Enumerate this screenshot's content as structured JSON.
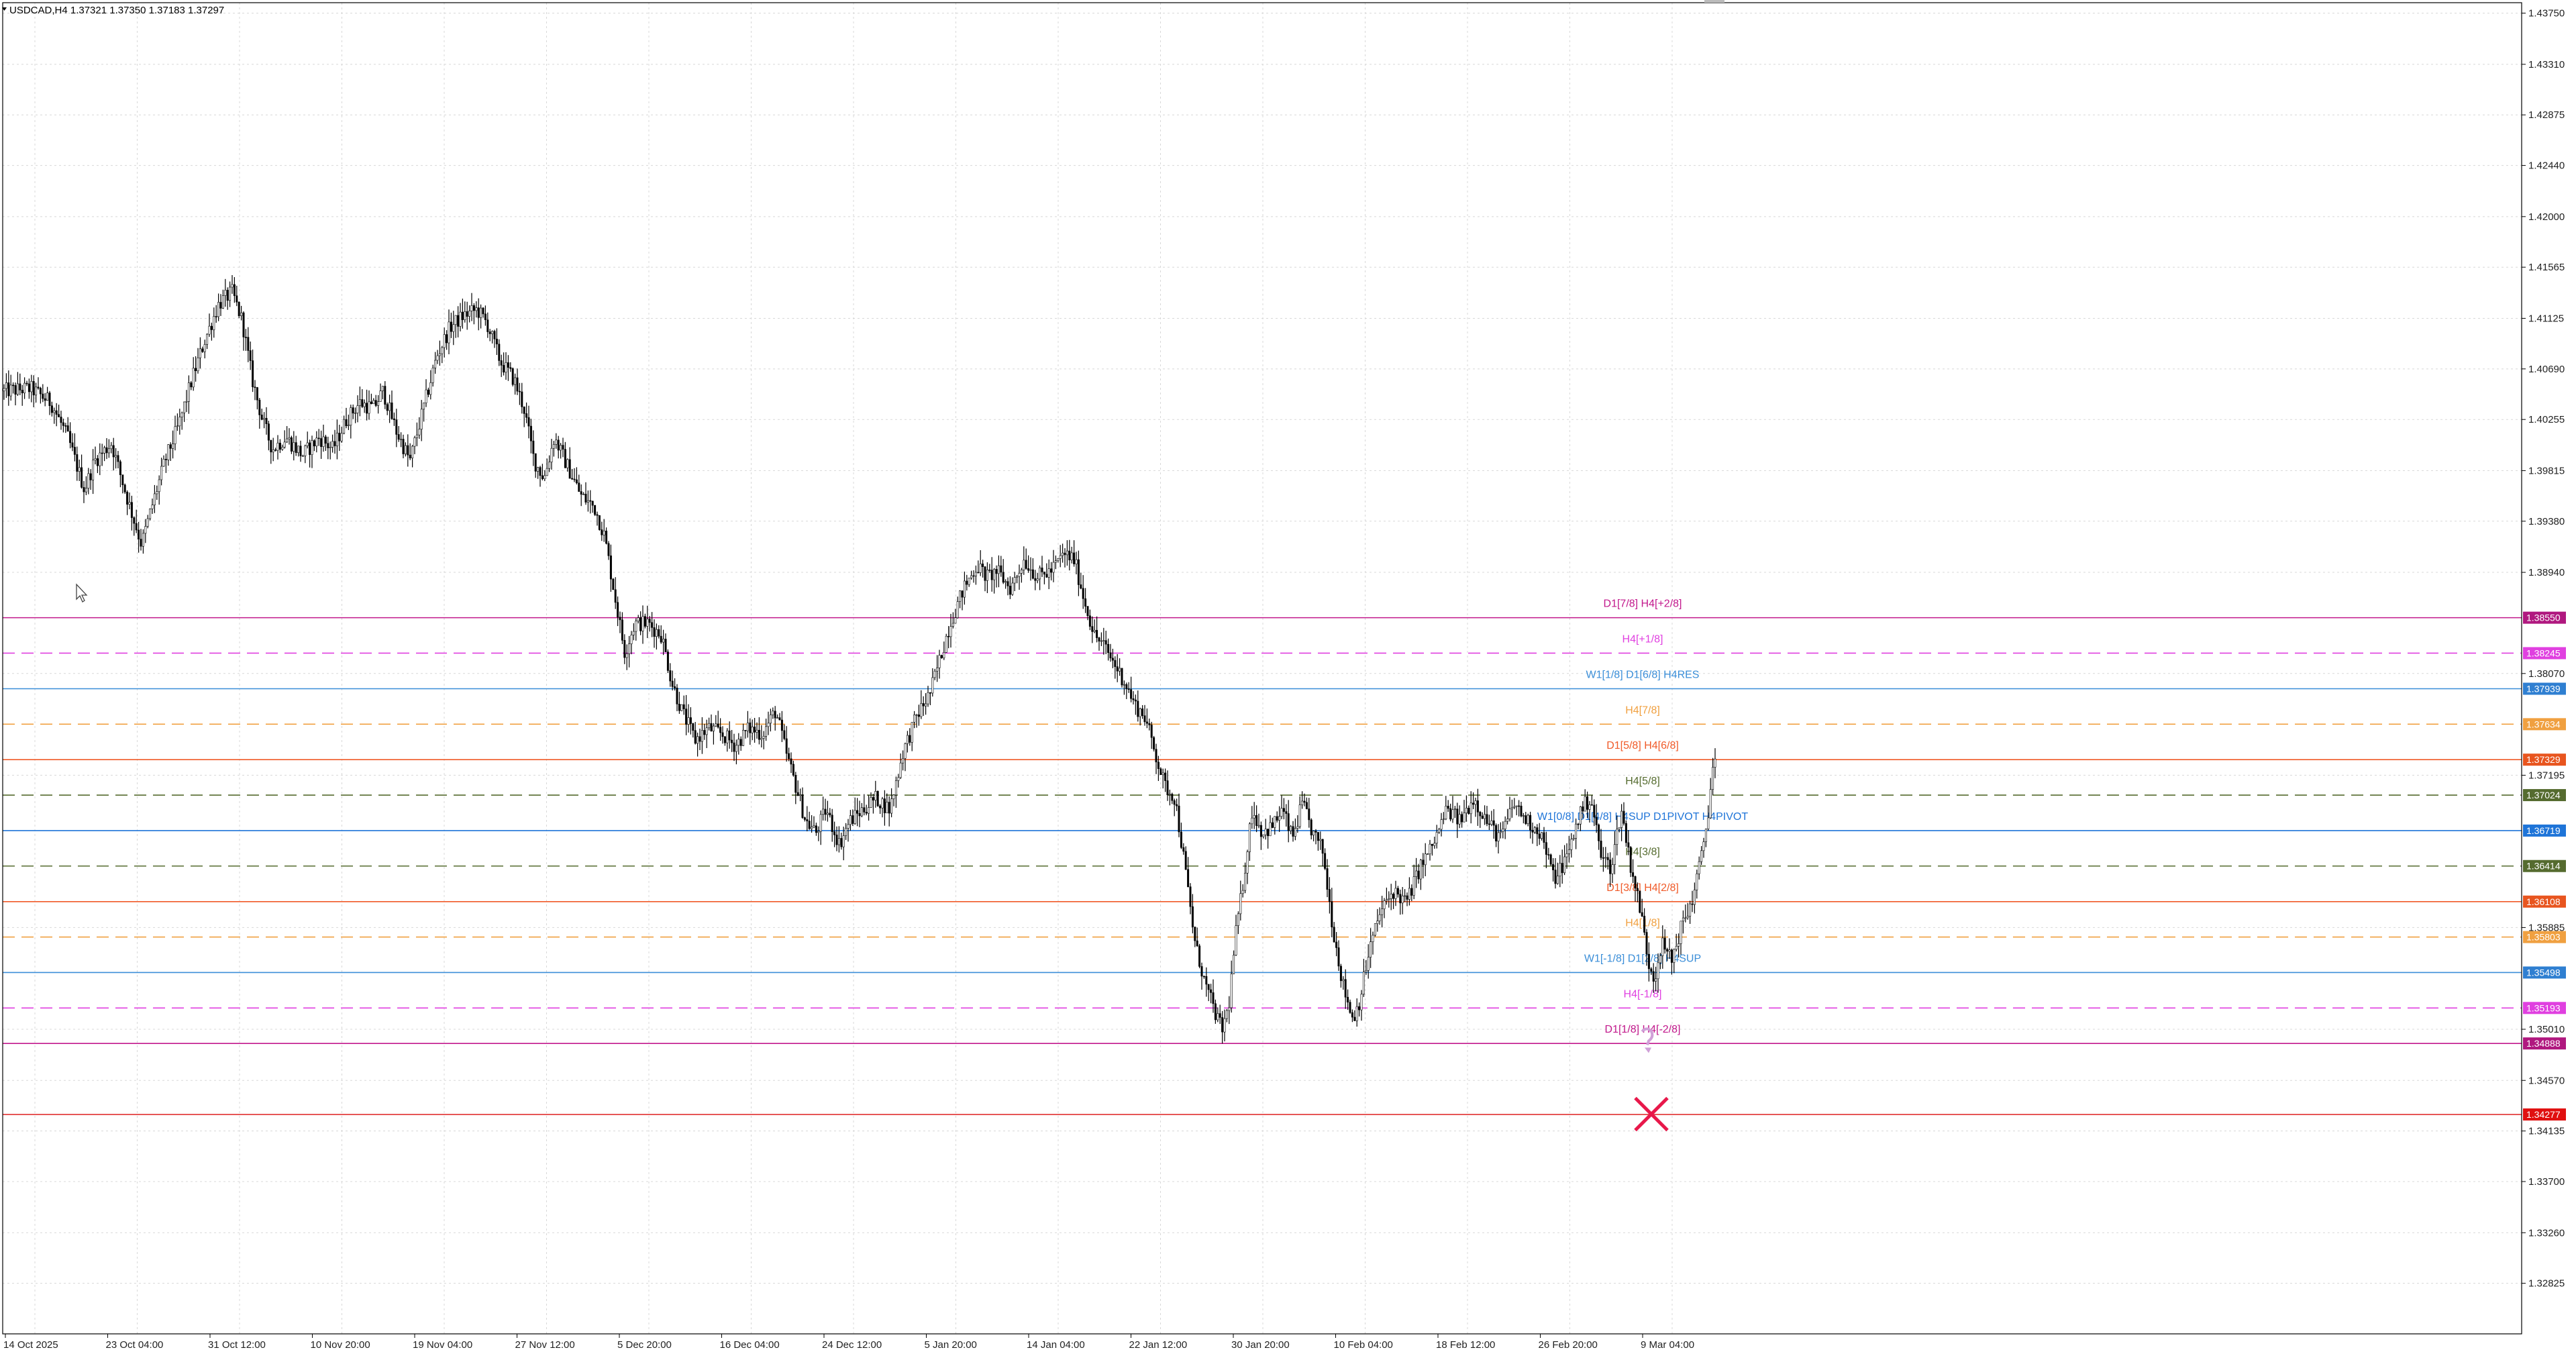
{
  "header": {
    "symbol_info": "USDCAD,H4  1.37321 1.37350 1.37183 1.37297"
  },
  "chart_data": {
    "type": "candlestick",
    "title": "USDCAD,H4  1.37321 1.37350 1.37183 1.37297",
    "ylim": [
      1.3239,
      1.4384
    ],
    "y_ticks": [
      "1.43750",
      "1.43310",
      "1.42875",
      "1.42440",
      "1.42000",
      "1.41565",
      "1.41125",
      "1.40690",
      "1.40255",
      "1.39815",
      "1.39380",
      "1.38940",
      "1.38070",
      "1.37195",
      "1.35885",
      "1.35010",
      "1.34570",
      "1.34135",
      "1.33700",
      "1.33260",
      "1.32825"
    ],
    "x_ticks": [
      "14 Oct 2025",
      "23 Oct 04:00",
      "31 Oct 12:00",
      "10 Nov 20:00",
      "19 Nov 04:00",
      "27 Nov 12:00",
      "5 Dec 20:00",
      "16 Dec 04:00",
      "24 Dec 12:00",
      "5 Jan 20:00",
      "14 Jan 04:00",
      "22 Jan 12:00",
      "30 Jan 20:00",
      "10 Feb 04:00",
      "18 Feb 12:00",
      "26 Feb 20:00",
      "9 Mar 04:00"
    ],
    "price_path": [
      [
        0,
        1.405
      ],
      [
        40,
        1.4052
      ],
      [
        70,
        1.404
      ],
      [
        95,
        1.401
      ],
      [
        120,
        1.3965
      ],
      [
        135,
        1.399
      ],
      [
        160,
        1.4005
      ],
      [
        185,
        1.3955
      ],
      [
        205,
        1.3918
      ],
      [
        220,
        1.395
      ],
      [
        240,
        1.399
      ],
      [
        260,
        1.402
      ],
      [
        280,
        1.406
      ],
      [
        300,
        1.4095
      ],
      [
        320,
        1.4125
      ],
      [
        340,
        1.4135
      ],
      [
        355,
        1.411
      ],
      [
        370,
        1.406
      ],
      [
        385,
        1.4025
      ],
      [
        400,
        1.4
      ],
      [
        420,
        1.401
      ],
      [
        445,
        1.3995
      ],
      [
        470,
        1.401
      ],
      [
        490,
        1.4
      ],
      [
        510,
        1.4025
      ],
      [
        530,
        1.404
      ],
      [
        550,
        1.4035
      ],
      [
        565,
        1.405
      ],
      [
        585,
        1.4015
      ],
      [
        605,
        1.399
      ],
      [
        625,
        1.4035
      ],
      [
        645,
        1.408
      ],
      [
        665,
        1.4105
      ],
      [
        685,
        1.4115
      ],
      [
        705,
        1.412
      ],
      [
        720,
        1.4108
      ],
      [
        740,
        1.4075
      ],
      [
        760,
        1.406
      ],
      [
        775,
        1.4035
      ],
      [
        790,
        1.399
      ],
      [
        805,
        1.3975
      ],
      [
        820,
        1.401
      ],
      [
        840,
        1.3985
      ],
      [
        860,
        1.396
      ],
      [
        880,
        1.395
      ],
      [
        895,
        1.3925
      ],
      [
        910,
        1.3875
      ],
      [
        925,
        1.3825
      ],
      [
        940,
        1.385
      ],
      [
        960,
        1.385
      ],
      [
        980,
        1.384
      ],
      [
        995,
        1.38
      ],
      [
        1010,
        1.3775
      ],
      [
        1030,
        1.375
      ],
      [
        1050,
        1.376
      ],
      [
        1070,
        1.3755
      ],
      [
        1090,
        1.3745
      ],
      [
        1110,
        1.376
      ],
      [
        1130,
        1.3755
      ],
      [
        1150,
        1.3775
      ],
      [
        1165,
        1.374
      ],
      [
        1180,
        1.371
      ],
      [
        1195,
        1.368
      ],
      [
        1210,
        1.367
      ],
      [
        1225,
        1.369
      ],
      [
        1245,
        1.366
      ],
      [
        1260,
        1.368
      ],
      [
        1280,
        1.369
      ],
      [
        1300,
        1.37
      ],
      [
        1320,
        1.369
      ],
      [
        1340,
        1.374
      ],
      [
        1360,
        1.377
      ],
      [
        1380,
        1.379
      ],
      [
        1395,
        1.382
      ],
      [
        1410,
        1.385
      ],
      [
        1430,
        1.388
      ],
      [
        1450,
        1.39
      ],
      [
        1465,
        1.389
      ],
      [
        1480,
        1.3895
      ],
      [
        1500,
        1.388
      ],
      [
        1520,
        1.3905
      ],
      [
        1540,
        1.389
      ],
      [
        1560,
        1.3895
      ],
      [
        1580,
        1.391
      ],
      [
        1595,
        1.3905
      ],
      [
        1610,
        1.387
      ],
      [
        1625,
        1.384
      ],
      [
        1640,
        1.383
      ],
      [
        1655,
        1.3815
      ],
      [
        1670,
        1.38
      ],
      [
        1685,
        1.378
      ],
      [
        1700,
        1.377
      ],
      [
        1715,
        1.374
      ],
      [
        1730,
        1.371
      ],
      [
        1745,
        1.37
      ],
      [
        1760,
        1.364
      ],
      [
        1775,
        1.3575
      ],
      [
        1790,
        1.354
      ],
      [
        1805,
        1.3515
      ],
      [
        1815,
        1.35
      ],
      [
        1825,
        1.352
      ],
      [
        1835,
        1.358
      ],
      [
        1845,
        1.362
      ],
      [
        1860,
        1.369
      ],
      [
        1875,
        1.367
      ],
      [
        1890,
        1.3675
      ],
      [
        1905,
        1.369
      ],
      [
        1920,
        1.3665
      ],
      [
        1935,
        1.3695
      ],
      [
        1950,
        1.367
      ],
      [
        1965,
        1.3655
      ],
      [
        1980,
        1.359
      ],
      [
        1995,
        1.354
      ],
      [
        2010,
        1.351
      ],
      [
        2020,
        1.3525
      ],
      [
        2035,
        1.357
      ],
      [
        2050,
        1.36
      ],
      [
        2070,
        1.362
      ],
      [
        2090,
        1.361
      ],
      [
        2110,
        1.364
      ],
      [
        2130,
        1.366
      ],
      [
        2150,
        1.369
      ],
      [
        2170,
        1.368
      ],
      [
        2190,
        1.37
      ],
      [
        2210,
        1.368
      ],
      [
        2230,
        1.3665
      ],
      [
        2250,
        1.3695
      ],
      [
        2270,
        1.368
      ],
      [
        2290,
        1.367
      ],
      [
        2310,
        1.363
      ],
      [
        2330,
        1.365
      ],
      [
        2350,
        1.369
      ],
      [
        2365,
        1.37
      ],
      [
        2380,
        1.365
      ],
      [
        2395,
        1.364
      ],
      [
        2410,
        1.369
      ],
      [
        2425,
        1.364
      ],
      [
        2440,
        1.36
      ],
      [
        2450,
        1.356
      ],
      [
        2460,
        1.3545
      ],
      [
        2470,
        1.3575
      ],
      [
        2485,
        1.356
      ],
      [
        2500,
        1.359
      ],
      [
        2515,
        1.361
      ],
      [
        2530,
        1.365
      ],
      [
        2540,
        1.369
      ],
      [
        2547,
        1.3729
      ],
      [
        2552,
        1.373
      ]
    ],
    "cross_marker_price": 1.3428,
    "levels": [
      {
        "name": "D1[7/8] H4[+2/8]",
        "price": 1.3855,
        "tag": "1.38550",
        "color": "#c2188c",
        "style": "solid",
        "tagcolor": "#b0187f"
      },
      {
        "name": "H4[+1/8]",
        "price": 1.38245,
        "tag": "1.38245",
        "color": "#e040e0",
        "style": "dash",
        "tagcolor": "#e040e0"
      },
      {
        "name": "W1[1/8] D1[6/8] H4RES",
        "price": 1.37939,
        "tag": "1.37939",
        "color": "#3a8ed8",
        "style": "solid",
        "tagcolor": "#2f7fd1"
      },
      {
        "name": "H4[7/8]",
        "price": 1.37634,
        "tag": "1.37634",
        "color": "#f0a040",
        "style": "dash",
        "tagcolor": "#f0a040"
      },
      {
        "name": "D1[5/8] H4[6/8]",
        "price": 1.37329,
        "tag": "1.37329",
        "color": "#f05a28",
        "style": "solid",
        "tagcolor": "#e8551f"
      },
      {
        "name": "H4[5/8]",
        "price": 1.37024,
        "tag": "1.37024",
        "color": "#556b2f",
        "style": "dash",
        "tagcolor": "#556b2f"
      },
      {
        "name": "W1[0/8] D1[4/8] H4SUP D1PIVOT H4PIVOT",
        "price": 1.36719,
        "tag": "1.36719",
        "color": "#1e74d8",
        "style": "solid",
        "tagcolor": "#1e74d8"
      },
      {
        "name": "H4[3/8]",
        "price": 1.36414,
        "tag": "1.36414",
        "color": "#556b2f",
        "style": "dash",
        "tagcolor": "#556b2f"
      },
      {
        "name": "D1[3/8] H4[2/8]",
        "price": 1.36108,
        "tag": "1.36108",
        "color": "#f05a28",
        "style": "solid",
        "tagcolor": "#e8551f"
      },
      {
        "name": "H4[1/8]",
        "price": 1.35803,
        "tag": "1.35803",
        "color": "#f0a040",
        "style": "dash",
        "tagcolor": "#f0a040"
      },
      {
        "name": "W1[-1/8] D1[2/8] H4SUP",
        "price": 1.35498,
        "tag": "1.35498",
        "color": "#3a8ed8",
        "style": "solid",
        "tagcolor": "#2f7fd1"
      },
      {
        "name": "H4[-1/8]",
        "price": 1.35193,
        "tag": "1.35193",
        "color": "#e040e0",
        "style": "dash",
        "tagcolor": "#e040e0"
      },
      {
        "name": "D1[1/8] H4[-2/8]",
        "price": 1.34888,
        "tag": "1.34888",
        "color": "#c2188c",
        "style": "solid",
        "tagcolor": "#b0187f"
      },
      {
        "name": "",
        "price": 1.34277,
        "tag": "1.34277",
        "color": "#e03030",
        "style": "solid",
        "tagcolor": "#e01010"
      }
    ],
    "grid": true
  }
}
